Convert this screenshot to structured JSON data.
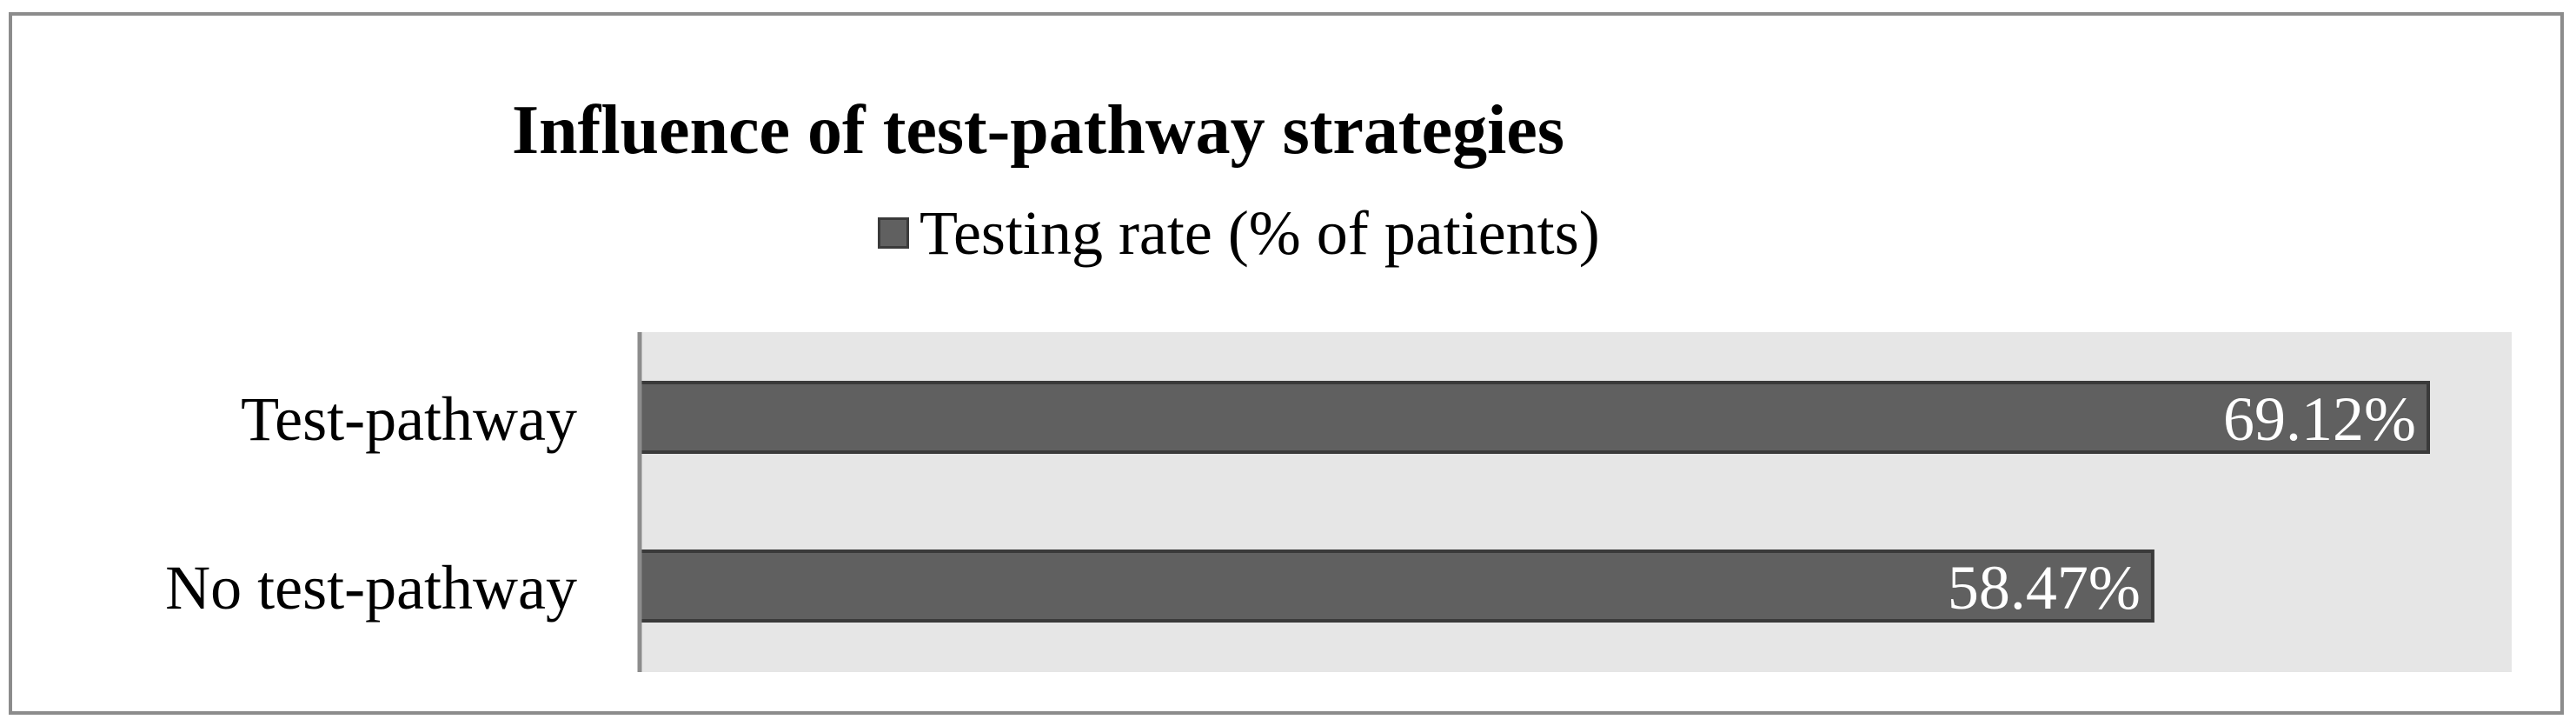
{
  "chart_data": {
    "type": "bar",
    "orientation": "horizontal",
    "title": "Influence of test-pathway strategies",
    "legend_position": "top",
    "categories": [
      "Test-pathway",
      "No test-pathway"
    ],
    "series": [
      {
        "name": "Testing rate (% of patients)",
        "values": [
          69.12,
          58.47
        ],
        "data_labels": [
          "69.12%",
          "58.47%"
        ]
      }
    ],
    "value_axis_visible": false,
    "grid": false,
    "colors": {
      "bar_fill": "#606060",
      "bar_stroke": "#3a3a3a",
      "plot_background": "#e6e6e6",
      "axis_line": "#8c8c8c",
      "data_label": "#ffffff"
    }
  }
}
